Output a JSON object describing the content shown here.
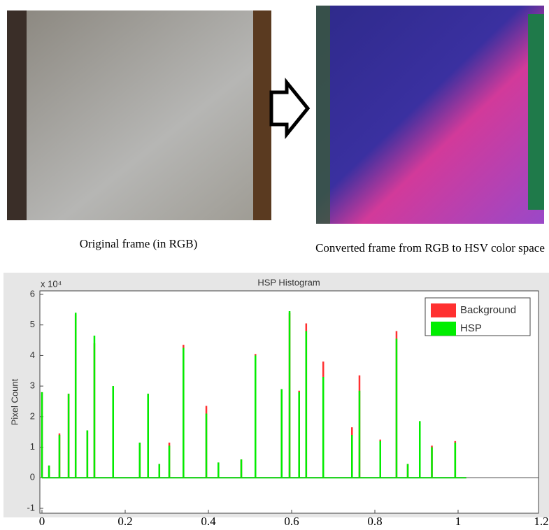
{
  "figure": {
    "left_caption": "Original frame (in RGB)",
    "right_caption": "Converted frame from RGB to HSV color space"
  },
  "chart_data": {
    "type": "bar",
    "title": "HSP Histogram",
    "y_label": "Pixel Count",
    "y_scale_label": "x 10⁴",
    "x": [
      0.0,
      0.017,
      0.042,
      0.064,
      0.081,
      0.109,
      0.126,
      0.171,
      0.235,
      0.255,
      0.282,
      0.306,
      0.34,
      0.395,
      0.424,
      0.479,
      0.513,
      0.576,
      0.595,
      0.618,
      0.635,
      0.676,
      0.745,
      0.763,
      0.813,
      0.852,
      0.879,
      0.908,
      0.937,
      0.993
    ],
    "series": [
      {
        "name": "Background",
        "color": "#ff3030",
        "values": [
          2.8,
          0.4,
          1.45,
          2.75,
          5.35,
          1.55,
          4.4,
          3.0,
          1.15,
          2.75,
          0.45,
          1.15,
          4.35,
          2.35,
          0.5,
          0.6,
          4.05,
          2.9,
          5.4,
          2.85,
          5.05,
          3.8,
          1.65,
          3.35,
          1.25,
          4.8,
          0.45,
          1.85,
          1.05,
          1.2
        ]
      },
      {
        "name": "HSP",
        "color": "#00ee00",
        "values": [
          2.8,
          0.4,
          1.4,
          2.75,
          5.4,
          1.55,
          4.65,
          3.0,
          1.15,
          2.75,
          0.45,
          1.05,
          4.25,
          2.1,
          0.5,
          0.6,
          4.0,
          2.9,
          5.45,
          2.8,
          4.8,
          3.3,
          1.4,
          2.85,
          1.2,
          4.55,
          0.45,
          1.85,
          1.0,
          1.15
        ]
      }
    ],
    "xlim": [
      0,
      1.2
    ],
    "xticks": [
      0,
      0.2,
      0.4,
      0.6,
      0.8,
      1,
      1.2
    ],
    "ylim": [
      -1,
      6
    ],
    "yticks": [
      -1,
      0,
      1,
      2,
      3,
      4,
      5,
      6
    ],
    "legend": "upper right",
    "grid": false
  }
}
